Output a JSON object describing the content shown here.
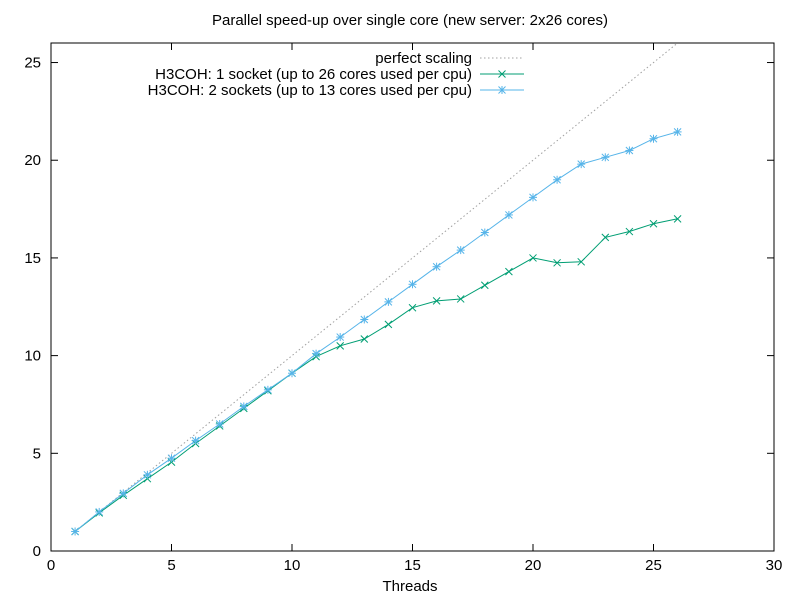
{
  "chart_data": {
    "type": "line",
    "title": "Parallel speed-up over single core (new server: 2x26 cores)",
    "xlabel": "Threads",
    "ylabel": "",
    "xlim": [
      0,
      30
    ],
    "ylim": [
      0,
      26
    ],
    "xticks": [
      0,
      5,
      10,
      15,
      20,
      25,
      30
    ],
    "yticks": [
      0,
      5,
      10,
      15,
      20,
      25
    ],
    "grid": false,
    "legend_position": "top-right",
    "series": [
      {
        "name": "perfect scaling",
        "color": "#a0a0a0",
        "style": "dotted",
        "marker": "none",
        "x": [
          1,
          26
        ],
        "values": [
          1,
          26
        ]
      },
      {
        "name": "H3COH: 1 socket (up to 26 cores used per cpu)",
        "color": "#009e73",
        "style": "solid",
        "marker": "x",
        "x": [
          1,
          2,
          3,
          4,
          5,
          6,
          7,
          8,
          9,
          10,
          11,
          12,
          13,
          14,
          15,
          16,
          17,
          18,
          19,
          20,
          21,
          22,
          23,
          24,
          25,
          26
        ],
        "values": [
          1.0,
          1.95,
          2.85,
          3.7,
          4.55,
          5.5,
          6.4,
          7.3,
          8.2,
          9.1,
          9.95,
          10.5,
          10.85,
          11.6,
          12.45,
          12.8,
          12.9,
          13.6,
          14.3,
          15.0,
          14.75,
          14.8,
          16.05,
          16.35,
          16.75,
          17.0
        ]
      },
      {
        "name": "H3COH: 2 sockets (up to 13 cores used per cpu)",
        "color": "#56b4e9",
        "style": "solid",
        "marker": "*",
        "x": [
          1,
          2,
          3,
          4,
          5,
          6,
          7,
          8,
          9,
          10,
          11,
          12,
          13,
          14,
          15,
          16,
          17,
          18,
          19,
          20,
          21,
          22,
          23,
          24,
          25,
          26
        ],
        "values": [
          1.0,
          2.0,
          2.95,
          3.9,
          4.75,
          5.65,
          6.5,
          7.4,
          8.25,
          9.1,
          10.1,
          10.95,
          11.85,
          12.75,
          13.65,
          14.55,
          15.4,
          16.3,
          17.2,
          18.1,
          19.0,
          19.8,
          20.15,
          20.5,
          21.1,
          21.45
        ]
      }
    ]
  }
}
